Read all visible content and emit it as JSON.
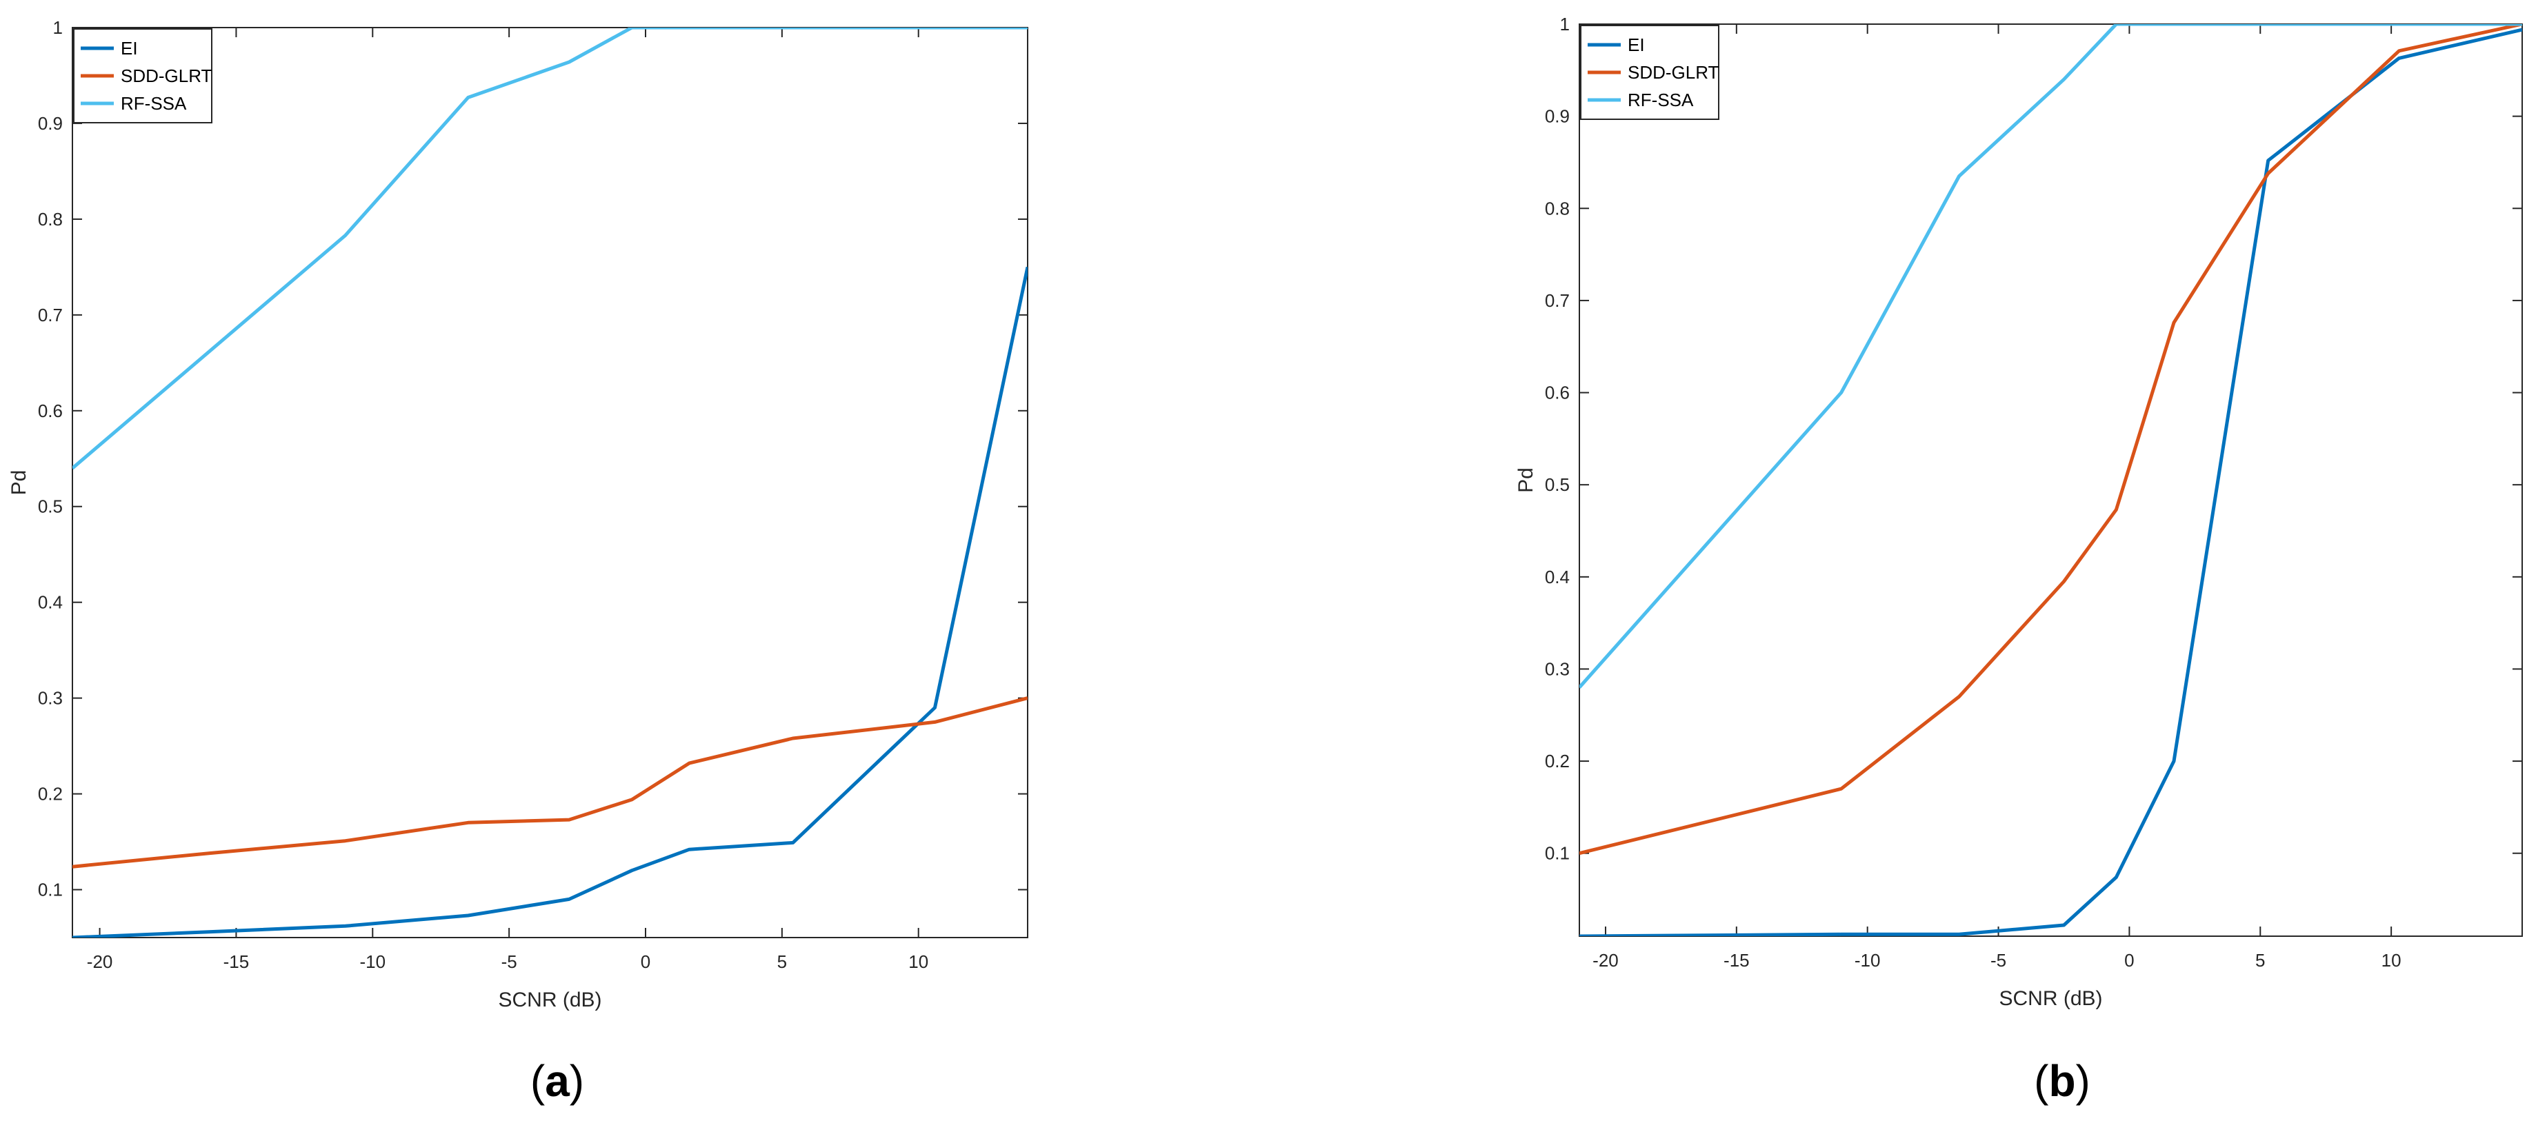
{
  "chart_data": [
    {
      "type": "line",
      "panel_label": "a",
      "xlabel": "SCNR (dB)",
      "ylabel": "Pd",
      "xlim": [
        -21,
        14
      ],
      "ylim": [
        0.05,
        1
      ],
      "xticks": [
        -20,
        -15,
        -10,
        -5,
        0,
        5,
        10
      ],
      "yticks": [
        0.1,
        0.2,
        0.3,
        0.4,
        0.5,
        0.6,
        0.7,
        0.8,
        0.9,
        1
      ],
      "grid": false,
      "legend_position": "top-left",
      "series": [
        {
          "name": "EI",
          "color": "#0072BD",
          "x": [
            -21,
            -16,
            -11,
            -6.5,
            -2.8,
            -0.5,
            1.6,
            5.4,
            10.6,
            14
          ],
          "y": [
            0.05,
            0.056,
            0.062,
            0.073,
            0.09,
            0.12,
            0.142,
            0.149,
            0.29,
            0.75
          ]
        },
        {
          "name": "SDD-GLRT",
          "color": "#D95319",
          "x": [
            -21,
            -16,
            -11,
            -6.5,
            -2.8,
            -0.5,
            1.6,
            5.4,
            10.6,
            14
          ],
          "y": [
            0.124,
            0.138,
            0.151,
            0.17,
            0.173,
            0.194,
            0.232,
            0.258,
            0.275,
            0.3
          ]
        },
        {
          "name": "RF-SSA",
          "color": "#4DBEEE",
          "x": [
            -21,
            -11,
            -6.5,
            -2.8,
            -0.5,
            1.6,
            5.4,
            10.6,
            14
          ],
          "y": [
            0.54,
            0.783,
            0.927,
            0.964,
            1.0,
            1.0,
            1.0,
            1.0,
            1.0
          ]
        }
      ]
    },
    {
      "type": "line",
      "panel_label": "b",
      "xlabel": "SCNR (dB)",
      "ylabel": "Pd",
      "xlim": [
        -21,
        15
      ],
      "ylim": [
        0.01,
        1
      ],
      "xticks": [
        -20,
        -15,
        -10,
        -5,
        0,
        5,
        10
      ],
      "yticks": [
        0.1,
        0.2,
        0.3,
        0.4,
        0.5,
        0.6,
        0.7,
        0.8,
        0.9,
        1
      ],
      "grid": false,
      "legend_position": "top-left",
      "series": [
        {
          "name": "EI",
          "color": "#0072BD",
          "x": [
            -21,
            -11,
            -6.5,
            -2.5,
            -0.5,
            1.7,
            5.3,
            10.3,
            15
          ],
          "y": [
            0.01,
            0.012,
            0.012,
            0.022,
            0.074,
            0.2,
            0.852,
            0.963,
            0.994
          ]
        },
        {
          "name": "SDD-GLRT",
          "color": "#D95319",
          "x": [
            -21,
            -11,
            -6.5,
            -2.5,
            -0.5,
            1.7,
            5.3,
            10.3,
            15
          ],
          "y": [
            0.1,
            0.17,
            0.27,
            0.395,
            0.473,
            0.676,
            0.838,
            0.971,
            1.0
          ]
        },
        {
          "name": "RF-SSA",
          "color": "#4DBEEE",
          "x": [
            -21,
            -11,
            -6.5,
            -2.5,
            -0.5,
            1.7,
            5.3,
            10.3,
            15
          ],
          "y": [
            0.28,
            0.6,
            0.835,
            0.94,
            1.0,
            1.0,
            1.0,
            1.0,
            1.0
          ]
        }
      ]
    }
  ]
}
